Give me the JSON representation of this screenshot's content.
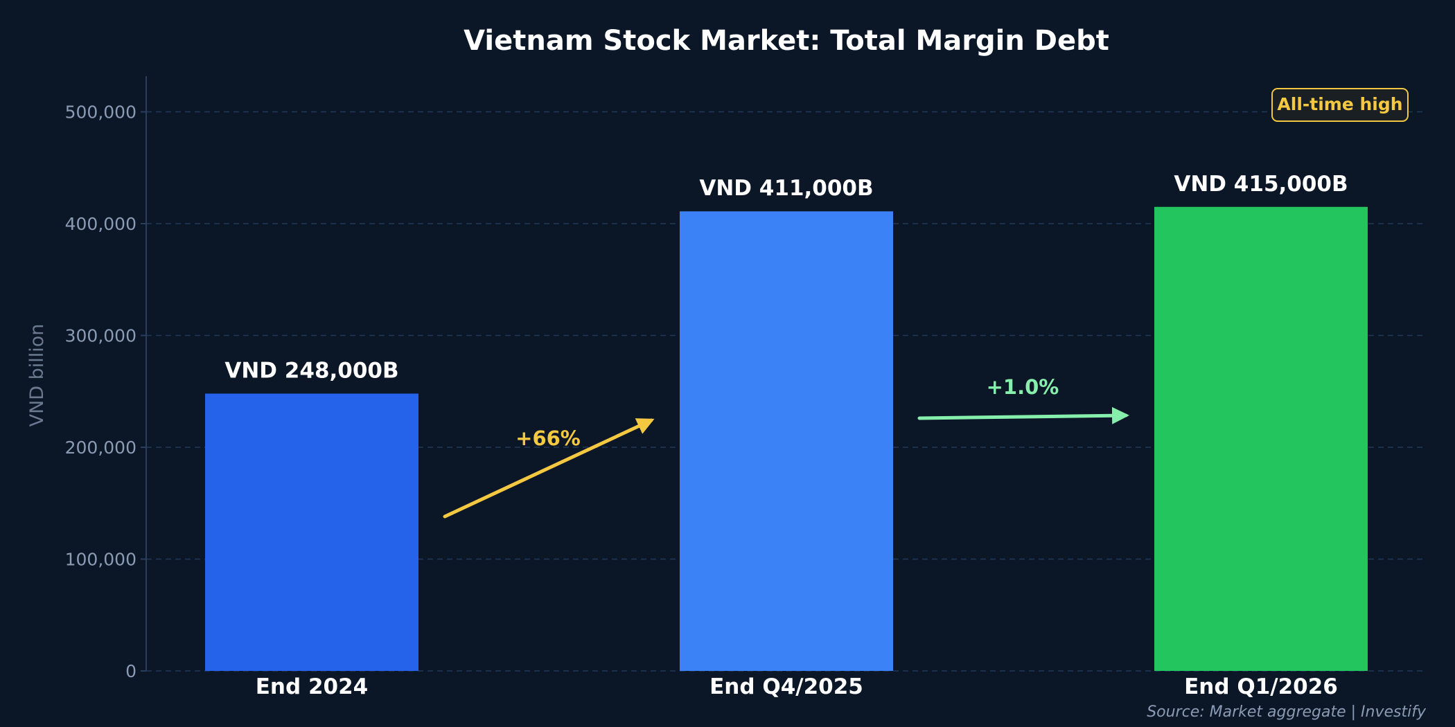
{
  "chart_data": {
    "type": "bar",
    "title": "Vietnam Stock Market: Total Margin Debt",
    "ylabel": "VND billion",
    "xlabel": "",
    "ylim": [
      0,
      530000
    ],
    "yticks": [
      0,
      100000,
      200000,
      300000,
      400000,
      500000
    ],
    "ytick_labels": [
      "0",
      "100,000",
      "200,000",
      "300,000",
      "400,000",
      "500,000"
    ],
    "categories": [
      "End 2024",
      "End Q4/2025",
      "End Q1/2026"
    ],
    "values": [
      248000,
      411000,
      415000
    ],
    "data_labels": [
      "VND 248,000B",
      "VND 411,000B",
      "VND 415,000B"
    ],
    "bar_colors": [
      "#2563eb",
      "#3b82f6",
      "#22c55e"
    ],
    "grid": true,
    "annotations": [
      {
        "text": "+66%",
        "from": 0,
        "to": 1,
        "color": "#f5c842"
      },
      {
        "text": "+1.0%",
        "from": 1,
        "to": 2,
        "color": "#86efac"
      }
    ],
    "badge": {
      "text": "All-time high",
      "placement": "top-right",
      "color": "#f5c842"
    },
    "source": "Source: Market aggregate | Investify"
  },
  "colors": {
    "background": "#0b1627",
    "grid": "#22385a",
    "tick_text": "#8b9bb4"
  }
}
